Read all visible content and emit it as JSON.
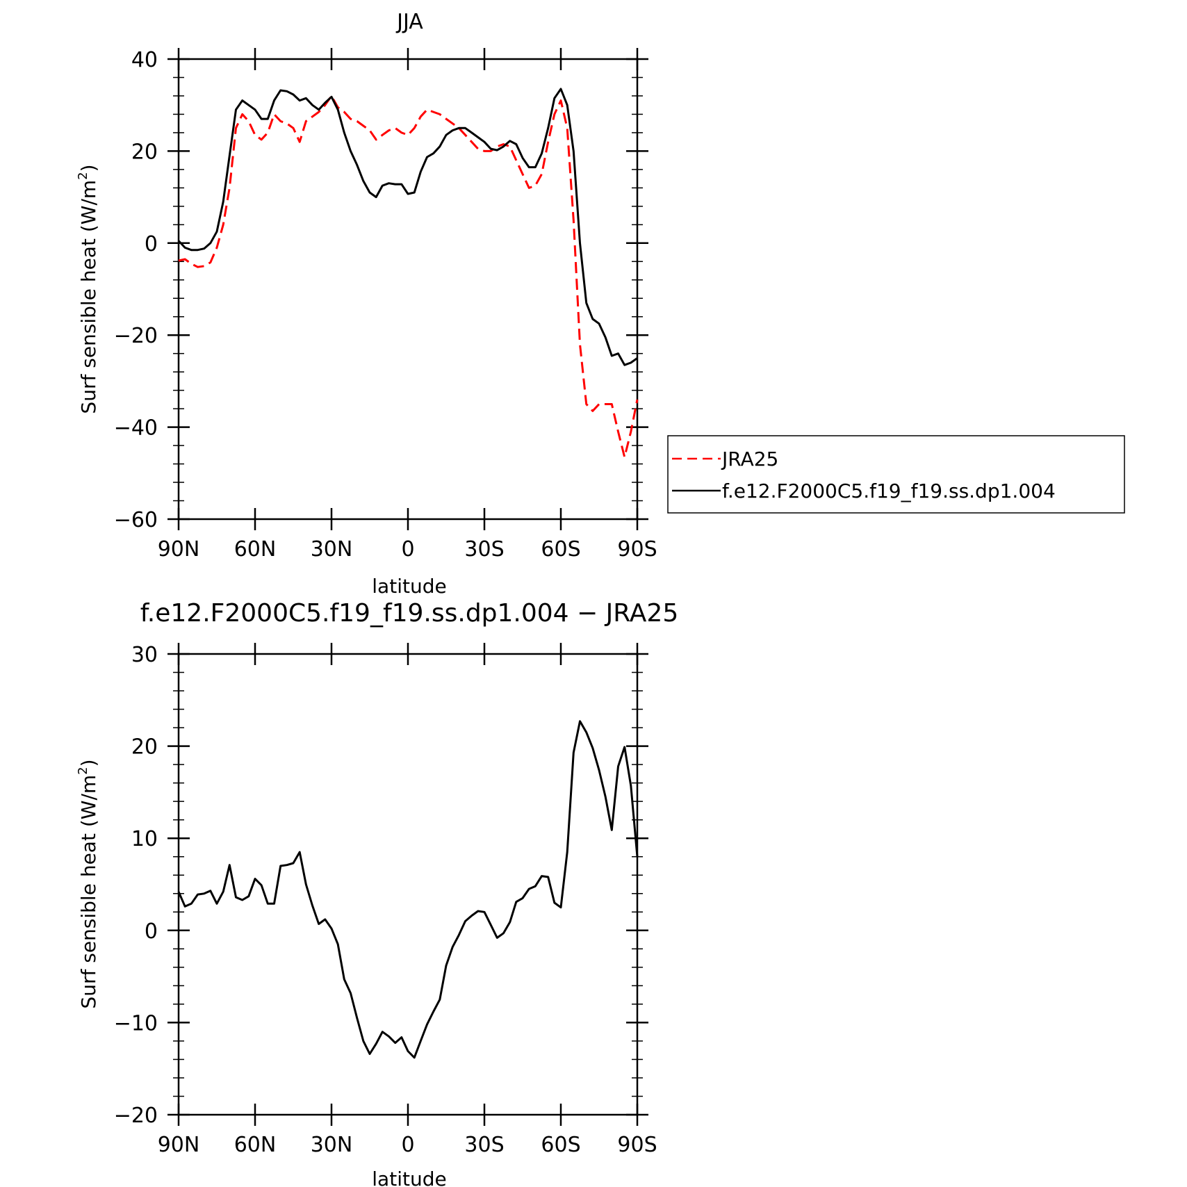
{
  "chart_data": [
    {
      "type": "line",
      "title": "JJA",
      "xlabel": "latitude",
      "ylabel_main": "Surf sensible heat (W/m",
      "ylabel_sup": "2",
      "ylabel_close": ")",
      "ylim": [
        -60,
        40
      ],
      "xlim": [
        90,
        -90
      ],
      "yticks": [
        -60,
        -40,
        -20,
        0,
        20,
        40
      ],
      "ytick_labels": [
        "−60",
        "−40",
        "−20",
        "0",
        "20",
        "40"
      ],
      "xticks": [
        90,
        60,
        30,
        0,
        -30,
        -60,
        -90
      ],
      "xtick_labels": [
        "90N",
        "60N",
        "30N",
        "0",
        "30S",
        "60S",
        "90S"
      ],
      "legend_position": "right",
      "grid": false,
      "series": [
        {
          "name": "JRA25",
          "color": "#ff0000",
          "dashed": true,
          "x": [
            90,
            87.5,
            85,
            82.5,
            80,
            77.5,
            75,
            72.5,
            70,
            67.5,
            65,
            62.5,
            60,
            57.5,
            55,
            52.5,
            50,
            47.5,
            45,
            42.5,
            40,
            37.5,
            35,
            32.5,
            30,
            27.5,
            25,
            22.5,
            20,
            17.5,
            15,
            12.5,
            10,
            7.5,
            5,
            2.5,
            0,
            -2.5,
            -5,
            -7.5,
            -10,
            -12.5,
            -15,
            -17.5,
            -20,
            -22.5,
            -25,
            -27.5,
            -30,
            -32.5,
            -35,
            -37.5,
            -40,
            -42.5,
            -45,
            -47.5,
            -50,
            -52.5,
            -55,
            -57.5,
            -60,
            -62.5,
            -65,
            -67.5,
            -70,
            -72.5,
            -75,
            -77.5,
            -80,
            -82.5,
            -85,
            -87.5,
            -90
          ],
          "values": [
            -3.8,
            -3.5,
            -4.5,
            -5.2,
            -5,
            -4.2,
            -1,
            4,
            12,
            25,
            28,
            26.5,
            23.5,
            22.5,
            24,
            28,
            26.5,
            26,
            25,
            22,
            26.5,
            27.5,
            28.5,
            30,
            32,
            29.5,
            28.5,
            27,
            26.5,
            25.5,
            24.5,
            22.5,
            23.5,
            24.5,
            25,
            24,
            23.5,
            25,
            27.5,
            29,
            28.5,
            28,
            27,
            26,
            25,
            23.5,
            22,
            20.5,
            20,
            20,
            21,
            21.5,
            21,
            18,
            15,
            12,
            12.5,
            15,
            22,
            28,
            31,
            25,
            5,
            -22,
            -35,
            -36.5,
            -35,
            -35,
            -35,
            -41,
            -46.5,
            -41,
            -34
          ]
        },
        {
          "name": "f.e12.F2000C5.f19_f19.ss.dp1.004",
          "color": "#000000",
          "dashed": false,
          "x": [
            90,
            87.5,
            85,
            82.5,
            80,
            77.5,
            75,
            72.5,
            70,
            67.5,
            65,
            62.5,
            60,
            57.5,
            55,
            52.5,
            50,
            47.5,
            45,
            42.5,
            40,
            37.5,
            35,
            32.5,
            30,
            27.5,
            25,
            22.5,
            20,
            17.5,
            15,
            12.5,
            10,
            7.5,
            5,
            2.5,
            0,
            -2.5,
            -5,
            -7.5,
            -10,
            -12.5,
            -15,
            -17.5,
            -20,
            -22.5,
            -25,
            -27.5,
            -30,
            -32.5,
            -35,
            -37.5,
            -40,
            -42.5,
            -45,
            -47.5,
            -50,
            -52.5,
            -55,
            -57.5,
            -60,
            -62.5,
            -65,
            -67.5,
            -70,
            -72.5,
            -75,
            -77.5,
            -80,
            -82.5,
            -85,
            -87.5,
            -90
          ],
          "values": [
            0.5,
            -1,
            -1.5,
            -1.5,
            -1.2,
            0,
            2.5,
            9,
            19,
            29,
            31,
            30,
            29,
            27,
            27,
            31,
            33.2,
            33,
            32.3,
            31,
            31.5,
            30,
            29,
            30.5,
            31.8,
            29,
            24,
            20,
            17,
            13.5,
            11,
            10,
            12.5,
            13,
            12.8,
            12.8,
            10.7,
            11,
            15.5,
            18.7,
            19.5,
            21,
            23.5,
            24.5,
            25,
            25,
            24,
            23,
            22,
            20.5,
            20.2,
            21,
            22.2,
            21.5,
            18.5,
            16.5,
            16.5,
            19.5,
            25,
            31.5,
            33.5,
            30,
            20,
            0,
            -13,
            -16.5,
            -17.5,
            -20.5,
            -24.5,
            -24,
            -26.5,
            -26,
            -25
          ]
        }
      ]
    },
    {
      "type": "line",
      "title": "f.e12.F2000C5.f19_f19.ss.dp1.004 − JRA25",
      "xlabel": "latitude",
      "ylabel_main": "Surf sensible heat (W/m",
      "ylabel_sup": "2",
      "ylabel_close": ")",
      "ylim": [
        -20,
        30
      ],
      "xlim": [
        90,
        -90
      ],
      "yticks": [
        -20,
        -10,
        0,
        10,
        20,
        30
      ],
      "ytick_labels": [
        "−20",
        "−10",
        "0",
        "10",
        "20",
        "30"
      ],
      "xticks": [
        90,
        60,
        30,
        0,
        -30,
        -60,
        -90
      ],
      "xtick_labels": [
        "90N",
        "60N",
        "30N",
        "0",
        "30S",
        "60S",
        "90S"
      ],
      "grid": false,
      "series": [
        {
          "color": "#000000",
          "dashed": false,
          "x": [
            90,
            87.5,
            85,
            82.5,
            80,
            77.5,
            75,
            72.5,
            70,
            67.5,
            65,
            62.5,
            60,
            57.5,
            55,
            52.5,
            50,
            47.5,
            45,
            42.5,
            40,
            37.5,
            35,
            32.5,
            30,
            27.5,
            25,
            22.5,
            20,
            17.5,
            15,
            12.5,
            10,
            7.5,
            5,
            2.5,
            0,
            -2.5,
            -5,
            -7.5,
            -10,
            -12.5,
            -15,
            -17.5,
            -20,
            -22.5,
            -25,
            -27.5,
            -30,
            -32.5,
            -35,
            -37.5,
            -40,
            -42.5,
            -45,
            -47.5,
            -50,
            -52.5,
            -55,
            -57.5,
            -60,
            -62.5,
            -65,
            -67.5,
            -70,
            -72.5,
            -75,
            -77.5,
            -80,
            -82.5,
            -85,
            -87.5,
            -90
          ],
          "values": [
            4.2,
            2.6,
            2.9,
            3.9,
            4,
            4.3,
            2.9,
            4.2,
            7.1,
            3.6,
            3.3,
            3.7,
            5.6,
            4.9,
            2.9,
            2.9,
            7,
            7.1,
            7.3,
            8.5,
            5,
            2.7,
            0.7,
            1.2,
            0.2,
            -1.5,
            -5.3,
            -6.8,
            -9.5,
            -12,
            -13.4,
            -12.3,
            -11,
            -11.5,
            -12.2,
            -11.6,
            -13.1,
            -13.8,
            -12,
            -10.2,
            -8.8,
            -7.5,
            -3.8,
            -1.8,
            -0.5,
            1,
            1.6,
            2.1,
            2,
            0.6,
            -0.8,
            -0.3,
            0.9,
            3.1,
            3.5,
            4.5,
            4.8,
            5.9,
            5.8,
            3,
            2.5,
            8.5,
            19.3,
            22.7,
            21.5,
            19.8,
            17.4,
            14.5,
            10.9,
            17.8,
            19.9,
            15.7,
            8
          ]
        }
      ]
    }
  ]
}
